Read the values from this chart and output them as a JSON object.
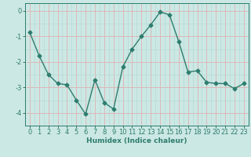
{
  "x": [
    0,
    1,
    2,
    3,
    4,
    5,
    6,
    7,
    8,
    9,
    10,
    11,
    12,
    13,
    14,
    15,
    16,
    17,
    18,
    19,
    20,
    21,
    22,
    23
  ],
  "y": [
    -0.85,
    -1.75,
    -2.5,
    -2.85,
    -2.9,
    -3.5,
    -4.05,
    -2.7,
    -3.6,
    -3.85,
    -2.2,
    -1.5,
    -1.0,
    -0.55,
    -0.05,
    -0.15,
    -1.2,
    -2.4,
    -2.35,
    -2.8,
    -2.85,
    -2.85,
    -3.05,
    -2.85
  ],
  "line_color": "#2d7d6e",
  "marker": "D",
  "markersize": 2.5,
  "linewidth": 1.0,
  "bg_color": "#cce8e4",
  "plot_bg_color": "#cce8e4",
  "grid_minor_color": "#b8dcd8",
  "grid_major_color": "#dbb8b8",
  "xlabel": "Humidex (Indice chaleur)",
  "xlim": [
    -0.5,
    23.5
  ],
  "ylim": [
    -4.5,
    0.3
  ],
  "yticks": [
    0,
    -1,
    -2,
    -3,
    -4
  ],
  "xticks": [
    0,
    1,
    2,
    3,
    4,
    5,
    6,
    7,
    8,
    9,
    10,
    11,
    12,
    13,
    14,
    15,
    16,
    17,
    18,
    19,
    20,
    21,
    22,
    23
  ],
  "tick_color": "#2d7d6e",
  "label_fontsize": 6.5,
  "tick_fontsize": 6.0
}
